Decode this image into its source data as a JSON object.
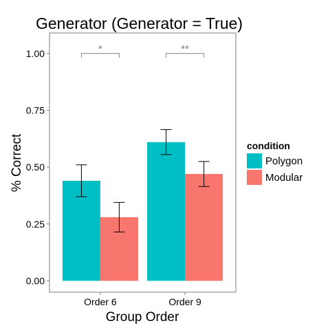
{
  "chart_data": {
    "type": "bar",
    "title": "Generator (Generator = True)",
    "xlabel": "Group Order",
    "ylabel": "% Correct",
    "categories": [
      "Order 6",
      "Order 9"
    ],
    "ylim": [
      -0.05,
      1.09
    ],
    "yticks": [
      "0.00",
      "0.25",
      "0.50",
      "0.75",
      "1.00"
    ],
    "series": [
      {
        "name": "Polygon",
        "color": "#00BFC4",
        "values": [
          0.44,
          0.61
        ],
        "error_low": [
          0.37,
          0.555
        ],
        "error_high": [
          0.51,
          0.665
        ]
      },
      {
        "name": "Modular",
        "color": "#F8766D",
        "values": [
          0.28,
          0.47
        ],
        "error_low": [
          0.215,
          0.415
        ],
        "error_high": [
          0.345,
          0.525
        ]
      }
    ],
    "legend": {
      "title": "condition",
      "position": "right"
    },
    "grid": false,
    "annotations": [
      {
        "category": "Order 6",
        "label": "*",
        "y": 1.0
      },
      {
        "category": "Order 9",
        "label": "**",
        "y": 1.0
      }
    ]
  }
}
